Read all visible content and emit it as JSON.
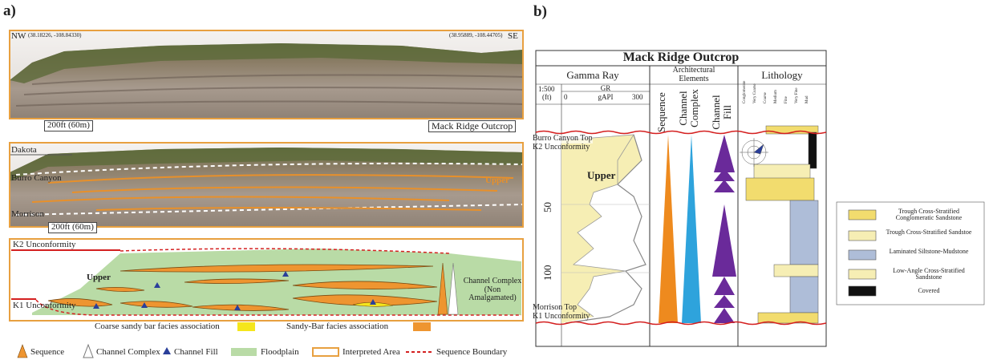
{
  "panel_a": {
    "label": "a)",
    "photo_1": {
      "left_label": "NW",
      "left_coords": "(38.18226, -108.84330)",
      "right_label": "SE",
      "right_coords": "(38.95889, -108.44705)",
      "scale": "200ft (60m)",
      "caption": "Mack Ridge Outcrop"
    },
    "photo_2": {
      "labels": [
        "Dakota",
        "Burro Canyon",
        "Morrison"
      ],
      "unit": "Upper",
      "scale": "200ft (60m)"
    },
    "diagram": {
      "top_boundary": "K2 Unconformity",
      "bottom_boundary": "K1 Unconformity",
      "unit": "Upper",
      "channel_complex": "Channel Complex (Non Amalgamated)"
    },
    "facies": [
      {
        "label": "Coarse sandy bar facies association",
        "color": "#f5e61c"
      },
      {
        "label": "Sandy-Bar facies association",
        "color": "#ee9530"
      }
    ],
    "legend": [
      "Sequence",
      "Channel Complex",
      "Channel Fill",
      "Floodplain",
      "Interpreted Area",
      "Sequence Boundary"
    ]
  },
  "panel_b": {
    "label": "b)",
    "title": "Mack Ridge Outcrop",
    "columns": [
      "Gamma Ray",
      "Architectural Elements",
      "Lithology"
    ],
    "scale": "1:500",
    "depth_unit": "(ft)",
    "curve": "GR",
    "curve_min": "0",
    "curve_unit": "gAPI",
    "curve_max": "300",
    "elements": [
      "Sequence",
      "Channel Complex",
      "Channel Fill"
    ],
    "grain_sizes": [
      "Conglomerate",
      "Very Coarse",
      "Coarse",
      "Medium",
      "Fine",
      "Very Fine",
      "Mud"
    ],
    "depth_labels": [
      50,
      100
    ],
    "tops": [
      {
        "name": "Burro Canyon Top",
        "surface": "K2 Unconformity"
      },
      {
        "name": "Morrison Top",
        "surface": "K1 Unconformity"
      }
    ],
    "unit": "Upper",
    "legend": [
      "Trough Cross-Stratified Conglomeratic Sandstone",
      "Trough Cross-Stratified Sandstoe",
      "Laminated Siltstone-Mudstone",
      "Low-Angle Cross-Stratified Sandstone",
      "Covered"
    ]
  }
}
